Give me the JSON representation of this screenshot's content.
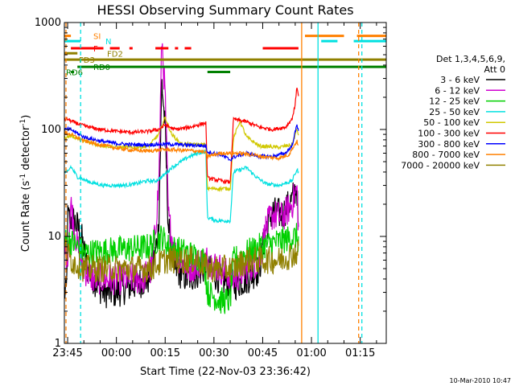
{
  "chart_data": {
    "type": "line",
    "title": "HESSI Observing Summary Count Rates",
    "xlabel": "Start Time (22-Nov-03 23:36:42)",
    "ylabel_main": "Count Rate (s",
    "ylabel_sup1": "-1",
    "ylabel_mid": " detector",
    "ylabel_sup2": "-1",
    "ylabel_end": ")",
    "y_scale": "log",
    "ylim": [
      1,
      1000
    ],
    "xlim_minutes": [
      -16,
      83
    ],
    "x_ticks": [
      {
        "minute": -15,
        "label": "23:45"
      },
      {
        "minute": 0,
        "label": "00:00"
      },
      {
        "minute": 15,
        "label": "00:15"
      },
      {
        "minute": 30,
        "label": "00:30"
      },
      {
        "minute": 45,
        "label": "00:45"
      },
      {
        "minute": 60,
        "label": "01:00"
      },
      {
        "minute": 75,
        "label": "01:15"
      }
    ],
    "y_ticks": [
      {
        "value": 1,
        "label": "1"
      },
      {
        "value": 10,
        "label": "10"
      },
      {
        "value": 100,
        "label": "100"
      },
      {
        "value": 1000,
        "label": "1000"
      }
    ],
    "legend": {
      "header1": "Det 1,3,4,5,6,9,",
      "header2": "Att 0",
      "position": "right"
    },
    "series": [
      {
        "name": "3 - 6 keV",
        "color": "#000000",
        "points": [
          [
            -16,
            3
          ],
          [
            -15.3,
            3
          ],
          [
            -15,
            15
          ],
          [
            -13,
            14
          ],
          [
            -11,
            11
          ],
          [
            -9,
            5
          ],
          [
            -7,
            4
          ],
          [
            -4,
            3
          ],
          [
            0,
            3
          ],
          [
            5,
            3.5
          ],
          [
            10,
            4
          ],
          [
            12,
            7
          ],
          [
            13,
            12
          ],
          [
            14,
            280
          ],
          [
            15,
            100
          ],
          [
            16,
            12
          ],
          [
            18,
            5
          ],
          [
            22,
            4
          ],
          [
            27,
            5
          ],
          [
            28,
            5
          ],
          [
            32,
            4
          ],
          [
            36,
            3.5
          ],
          [
            40,
            4
          ],
          [
            44,
            5
          ],
          [
            46,
            12
          ],
          [
            48,
            17
          ],
          [
            51,
            16
          ],
          [
            54,
            22
          ],
          [
            55.5,
            30
          ],
          [
            56,
            10
          ]
        ]
      },
      {
        "name": "6 - 12 keV",
        "color": "#d000d0",
        "points": [
          [
            -16,
            7
          ],
          [
            -15,
            7
          ],
          [
            -14,
            20
          ],
          [
            -12,
            8
          ],
          [
            -10,
            5
          ],
          [
            -7,
            4
          ],
          [
            0,
            4
          ],
          [
            8,
            4
          ],
          [
            11,
            5
          ],
          [
            13,
            30
          ],
          [
            14,
            700
          ],
          [
            15,
            200
          ],
          [
            16,
            15
          ],
          [
            18,
            7
          ],
          [
            22,
            5
          ],
          [
            27,
            6
          ],
          [
            28,
            6
          ],
          [
            32,
            5
          ],
          [
            36,
            4
          ],
          [
            40,
            5
          ],
          [
            44,
            6
          ],
          [
            46,
            12
          ],
          [
            48,
            16
          ],
          [
            51,
            15
          ],
          [
            54,
            20
          ],
          [
            55.5,
            28
          ],
          [
            56,
            12
          ]
        ]
      },
      {
        "name": "12 - 25 keV",
        "color": "#00d000",
        "points": [
          [
            -16,
            9
          ],
          [
            -14,
            9
          ],
          [
            -12,
            8
          ],
          [
            -10,
            7
          ],
          [
            0,
            7.5
          ],
          [
            10,
            8
          ],
          [
            14,
            10
          ],
          [
            16,
            8
          ],
          [
            22,
            7
          ],
          [
            27,
            6
          ],
          [
            28,
            3
          ],
          [
            32,
            2.5
          ],
          [
            35,
            2.5
          ],
          [
            36,
            6
          ],
          [
            40,
            7
          ],
          [
            44,
            8
          ],
          [
            50,
            9
          ],
          [
            55.5,
            10
          ],
          [
            56,
            9
          ]
        ]
      },
      {
        "name": "25 - 50 keV",
        "color": "#00e0e0",
        "points": [
          [
            -16,
            40
          ],
          [
            -15,
            40
          ],
          [
            -14,
            45
          ],
          [
            -12,
            36
          ],
          [
            -8,
            32
          ],
          [
            -4,
            30
          ],
          [
            2,
            30
          ],
          [
            6,
            31
          ],
          [
            9,
            33
          ],
          [
            12,
            33
          ],
          [
            14,
            36
          ],
          [
            17,
            44
          ],
          [
            22,
            55
          ],
          [
            25,
            60
          ],
          [
            27.5,
            62
          ],
          [
            28,
            15
          ],
          [
            31,
            14
          ],
          [
            35,
            14
          ],
          [
            36,
            40
          ],
          [
            40,
            44
          ],
          [
            43,
            36
          ],
          [
            46,
            31
          ],
          [
            50,
            30
          ],
          [
            54,
            33
          ],
          [
            55.5,
            42
          ],
          [
            56,
            40
          ]
        ]
      },
      {
        "name": "50 - 100 keV",
        "color": "#d0c800",
        "points": [
          [
            -16,
            85
          ],
          [
            -15,
            85
          ],
          [
            -14,
            88
          ],
          [
            -10,
            78
          ],
          [
            -6,
            72
          ],
          [
            0,
            68
          ],
          [
            6,
            68
          ],
          [
            10,
            70
          ],
          [
            13,
            90
          ],
          [
            15,
            130
          ],
          [
            17,
            90
          ],
          [
            20,
            73
          ],
          [
            25,
            72
          ],
          [
            27.5,
            72
          ],
          [
            28,
            28
          ],
          [
            35,
            28
          ],
          [
            36,
            82
          ],
          [
            38,
            120
          ],
          [
            40,
            85
          ],
          [
            44,
            70
          ],
          [
            50,
            68
          ],
          [
            54,
            72
          ],
          [
            55.5,
            100
          ],
          [
            56,
            90
          ]
        ]
      },
      {
        "name": "100 - 300 keV",
        "color": "#ff0000",
        "points": [
          [
            -16,
            125
          ],
          [
            -15,
            125
          ],
          [
            -14,
            120
          ],
          [
            -10,
            108
          ],
          [
            -5,
            100
          ],
          [
            0,
            96
          ],
          [
            5,
            94
          ],
          [
            10,
            96
          ],
          [
            13,
            100
          ],
          [
            15,
            110
          ],
          [
            18,
            100
          ],
          [
            22,
            104
          ],
          [
            26,
            112
          ],
          [
            27.5,
            115
          ],
          [
            28,
            35
          ],
          [
            35,
            32
          ],
          [
            36,
            125
          ],
          [
            40,
            118
          ],
          [
            44,
            105
          ],
          [
            48,
            100
          ],
          [
            52,
            105
          ],
          [
            54,
            125
          ],
          [
            55,
            170
          ],
          [
            55.5,
            260
          ],
          [
            56,
            200
          ]
        ]
      },
      {
        "name": "300 - 800 keV",
        "color": "#0000ff",
        "points": [
          [
            -16,
            100
          ],
          [
            -15,
            100
          ],
          [
            -14,
            100
          ],
          [
            -10,
            85
          ],
          [
            -5,
            78
          ],
          [
            0,
            74
          ],
          [
            5,
            72
          ],
          [
            10,
            72
          ],
          [
            15,
            73
          ],
          [
            20,
            72
          ],
          [
            25,
            71
          ],
          [
            27.5,
            70
          ],
          [
            28,
            62
          ],
          [
            32,
            58
          ],
          [
            35,
            52
          ],
          [
            36,
            55
          ],
          [
            40,
            60
          ],
          [
            44,
            56
          ],
          [
            48,
            56
          ],
          [
            52,
            60
          ],
          [
            54,
            70
          ],
          [
            55.5,
            110
          ],
          [
            56,
            100
          ]
        ]
      },
      {
        "name": "800 - 7000 keV",
        "color": "#ff8000",
        "points": [
          [
            -16,
            92
          ],
          [
            -15,
            92
          ],
          [
            -14,
            90
          ],
          [
            -10,
            78
          ],
          [
            -5,
            72
          ],
          [
            0,
            67
          ],
          [
            5,
            64
          ],
          [
            10,
            63
          ],
          [
            15,
            65
          ],
          [
            20,
            64
          ],
          [
            25,
            63
          ],
          [
            27.5,
            61
          ],
          [
            28,
            56
          ],
          [
            32,
            60
          ],
          [
            35,
            60
          ],
          [
            38,
            60
          ],
          [
            42,
            58
          ],
          [
            46,
            55
          ],
          [
            50,
            54
          ],
          [
            53,
            58
          ],
          [
            55.5,
            78
          ],
          [
            56,
            70
          ]
        ]
      },
      {
        "name": "7000 - 20000 keV",
        "color": "#908000",
        "points": [
          [
            -16,
            8
          ],
          [
            -14,
            6
          ],
          [
            -10,
            5
          ],
          [
            0,
            5
          ],
          [
            5,
            5
          ],
          [
            10,
            5
          ],
          [
            15,
            6
          ],
          [
            20,
            6
          ],
          [
            25,
            6
          ],
          [
            28,
            5
          ],
          [
            32,
            5
          ],
          [
            36,
            5
          ],
          [
            40,
            6
          ],
          [
            45,
            6
          ],
          [
            50,
            6
          ],
          [
            55,
            7
          ],
          [
            56,
            7
          ]
        ]
      }
    ],
    "flags": [
      {
        "name": "SI",
        "color": "#ff8000",
        "y": 750,
        "segments": [
          [
            -16,
            -14
          ],
          [
            58,
            70
          ],
          [
            74,
            83
          ]
        ]
      },
      {
        "name": "N",
        "color": "#00e0e0",
        "y": 670,
        "segments": [
          [
            -16,
            -11
          ],
          [
            63,
            68
          ],
          [
            73,
            83
          ]
        ]
      },
      {
        "name": "F",
        "color": "#ff0000",
        "y": 575,
        "segments": [
          [
            -14,
            -4
          ],
          [
            -2,
            1
          ],
          [
            4,
            5
          ],
          [
            12,
            16
          ],
          [
            18,
            19
          ],
          [
            21,
            23
          ],
          [
            45,
            56
          ]
        ]
      },
      {
        "name": "FD2",
        "color": "#908000",
        "y": 515,
        "segments": [
          [
            -16,
            -12
          ]
        ]
      },
      {
        "name": "FD3",
        "color": "#908000",
        "y": 450,
        "segments": [
          [
            -16,
            83
          ]
        ]
      },
      {
        "name": "RD0",
        "color": "#008000",
        "y": 385,
        "segments": [
          [
            -12,
            83
          ]
        ]
      },
      {
        "name": "RD6",
        "color": "#008000",
        "y": 345,
        "segments": [
          [
            -14,
            -13
          ],
          [
            28,
            35
          ]
        ]
      }
    ],
    "vlines": [
      {
        "minute": -15.5,
        "color": "#ff8000",
        "style": "dashed"
      },
      {
        "minute": -11,
        "color": "#00e0e0",
        "style": "dashed"
      },
      {
        "minute": 57,
        "color": "#ff8000",
        "style": "solid"
      },
      {
        "minute": 62,
        "color": "#00e0e0",
        "style": "solid"
      },
      {
        "minute": 74.5,
        "color": "#ff8000",
        "style": "dashed"
      },
      {
        "minute": 75.5,
        "color": "#00e0e0",
        "style": "dashed"
      }
    ]
  },
  "timestamp": "10-Mar-2010 10:47"
}
